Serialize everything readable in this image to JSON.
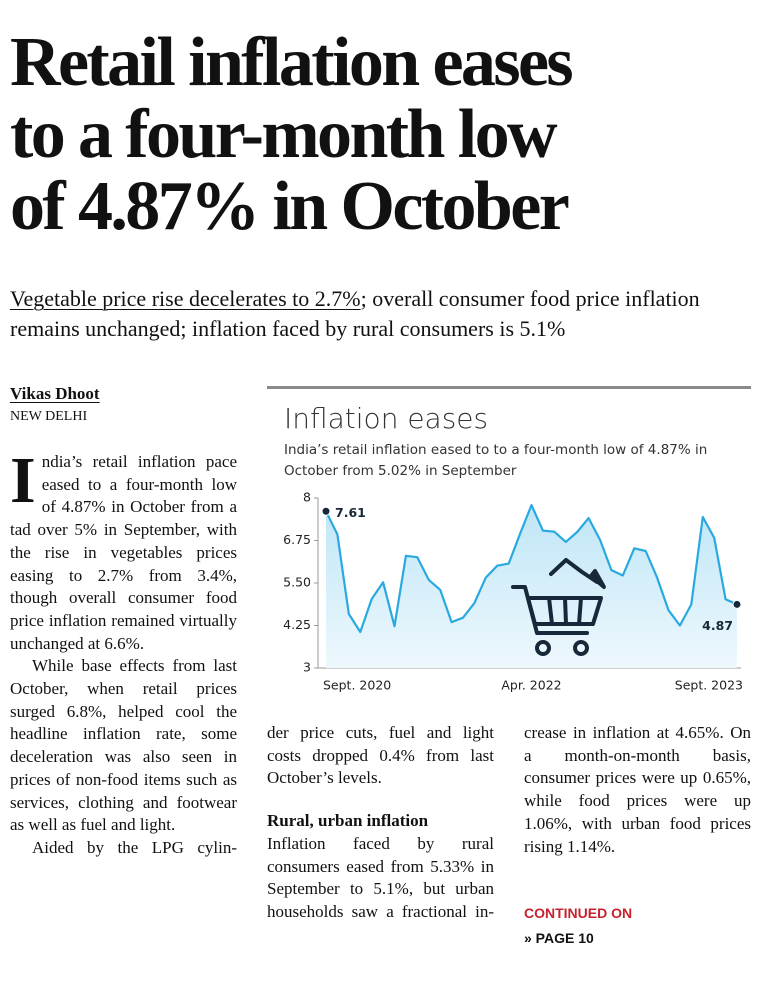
{
  "headline": [
    "Retail inflation eases",
    "to a four-month low",
    "of 4.87% in October"
  ],
  "subheadline": {
    "underlined": "Vegetable price rise decelerates to 2.7%",
    "rest": "; overall consumer food price inflation remains unchanged; inflation faced by rural consumers is 5.1%"
  },
  "byline": {
    "author": "Vikas Dhoot",
    "dateline": "NEW DELHI"
  },
  "columns": [
    [
      "India’s retail inflation pace eased to a four-month low of 4.87% in October from a tad over 5% in September, with the rise in vegetables prices easing to 2.7% from 3.4%, though overall consumer food price inflation remained virtually unchanged at 6.6%.",
      "While base effects from last October, when retail prices surged 6.8%, helped cool the headline inflation rate, some deceleration was also seen in prices of non-food items such as services, clothing and footwear as well as fuel and light.",
      "Aided by the LPG cylin-"
    ],
    [
      "der price cuts, fuel and light costs dropped 0.4% from last October’s levels.",
      "Inflation faced by rural consumers eased from 5.33% in September to 5.1%, but urban households saw a fractional in-"
    ],
    [
      "crease in inflation at 4.65%. On a month-on-month basis, consumer prices were up 0.65%, while food prices were up 1.06%, with urban food prices rising 1.14%."
    ]
  ],
  "section_heading": "Rural, urban inflation",
  "continued": {
    "label": "CONTINUED ON",
    "page": "» PAGE 10"
  },
  "chart_data": {
    "type": "area",
    "title": "Inflation eases",
    "subtitle": "India’s retail inflation eased to to a four-month low of 4.87% in October from 5.02% in September",
    "categories": [
      "Sept. 2020",
      null,
      null,
      null,
      null,
      null,
      null,
      null,
      null,
      null,
      null,
      null,
      null,
      null,
      null,
      null,
      null,
      null,
      "Apr. 2022",
      null,
      null,
      null,
      null,
      null,
      null,
      null,
      null,
      null,
      null,
      null,
      null,
      null,
      null,
      null,
      null,
      "Sept. 2023",
      null
    ],
    "series": [
      {
        "color": "#2aa9e0",
        "values": [
          7.61,
          6.93,
          4.59,
          4.06,
          5.03,
          5.52,
          4.23,
          6.3,
          6.26,
          5.59,
          5.3,
          4.35,
          4.48,
          4.91,
          5.66,
          6.01,
          6.07,
          6.95,
          7.79,
          7.04,
          7.01,
          6.71,
          7.0,
          7.41,
          6.77,
          5.88,
          5.72,
          6.52,
          6.44,
          5.66,
          4.7,
          4.25,
          4.87,
          7.44,
          6.83,
          5.02,
          4.87
        ],
        "value_labels": [
          "7.61",
          null,
          null,
          null,
          null,
          null,
          null,
          null,
          null,
          null,
          null,
          null,
          null,
          null,
          null,
          null,
          null,
          null,
          null,
          null,
          null,
          null,
          null,
          null,
          null,
          null,
          null,
          null,
          null,
          null,
          null,
          null,
          null,
          null,
          null,
          null,
          "4.87"
        ]
      }
    ],
    "ylim": [
      3,
      8
    ],
    "yticks": [
      3,
      4.25,
      {
        "value": 5.5,
        "label": "5.50"
      },
      6.75,
      8
    ],
    "grid": false
  }
}
